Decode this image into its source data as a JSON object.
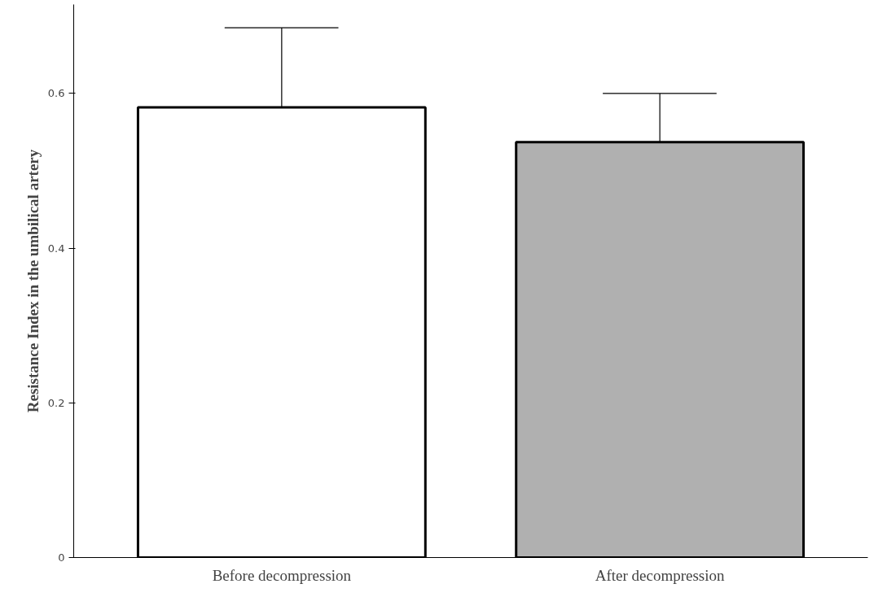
{
  "chart_data": {
    "type": "bar",
    "ylabel": "Resistance Index in the umbilical artery",
    "categories": [
      "Before decompression",
      "After decompression"
    ],
    "values": [
      0.582,
      0.537
    ],
    "colors": [
      "#ffffff",
      "#b0b0b0"
    ],
    "errors": [
      [
        0.582,
        0.685
      ],
      [
        0.537,
        0.6
      ]
    ],
    "ylim": [
      0,
      0.715
    ],
    "yticks": [
      0,
      0.2,
      0.4,
      0.6
    ],
    "grid": false
  }
}
